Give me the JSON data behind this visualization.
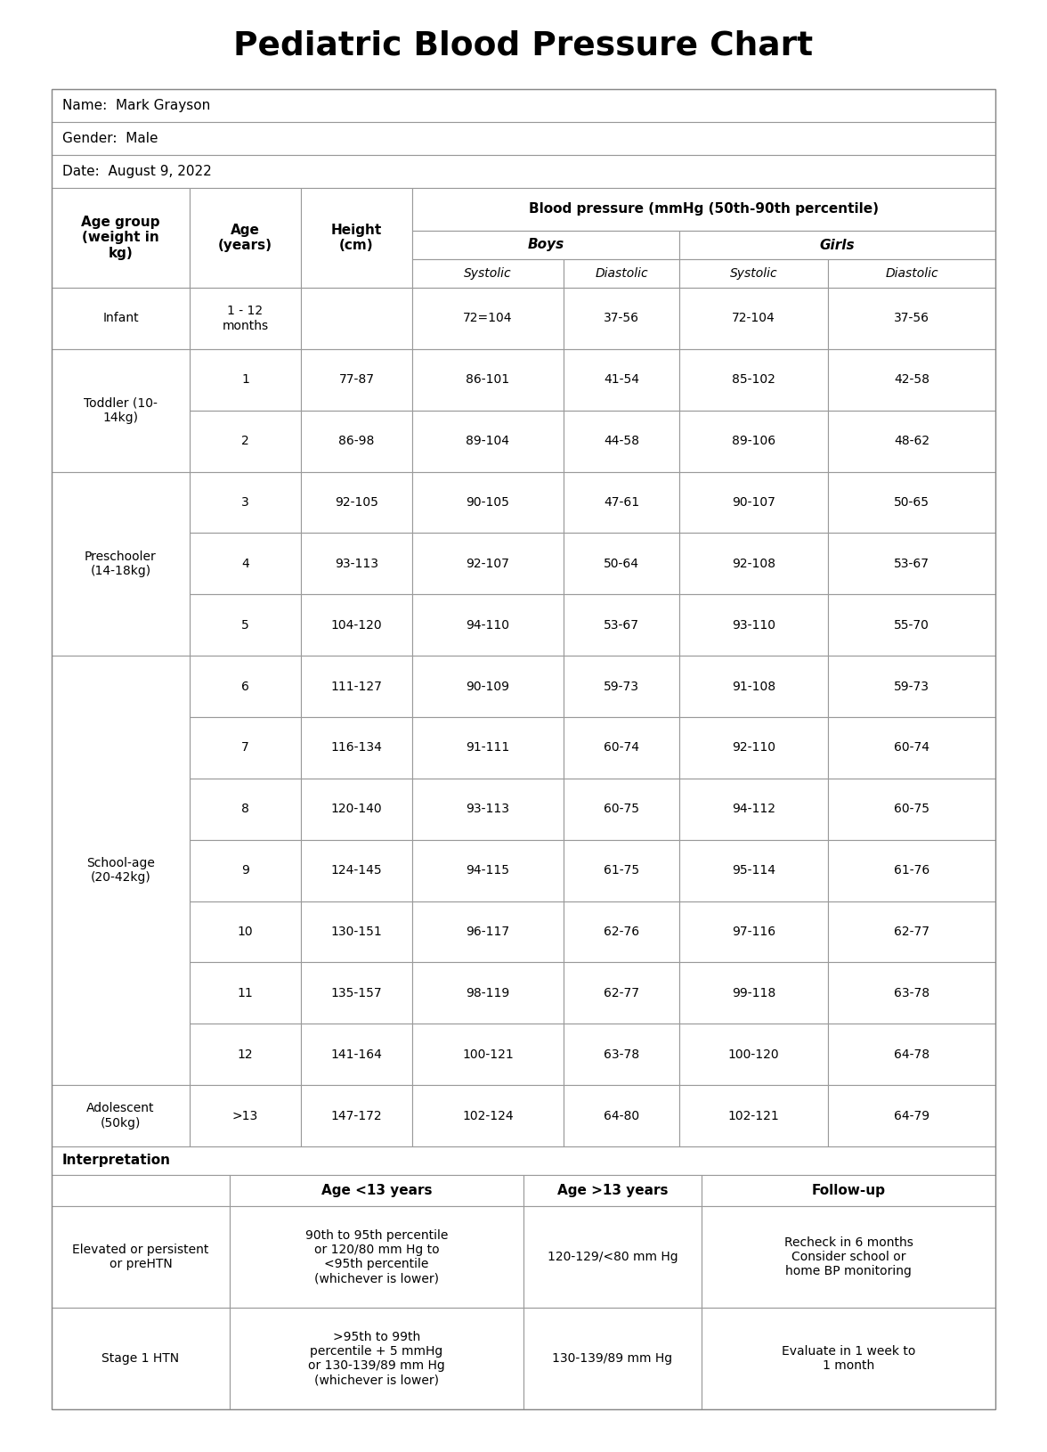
{
  "title": "Pediatric Blood Pressure Chart",
  "name": "Name:  Mark Grayson",
  "gender": "Gender:  Male",
  "date": "Date:  August 9, 2022",
  "bp_header": "Blood pressure (mmHg (50th-90th percentile)",
  "col_headers": [
    "Age group\n(weight in\nkg)",
    "Age\n(years)",
    "Height\n(cm)",
    "Systolic",
    "Diastolic",
    "Systolic",
    "Diastolic"
  ],
  "main_table_data": [
    {
      "group": "Infant",
      "age": "1 - 12\nmonths",
      "height": "",
      "b_sys": "72=104",
      "b_dia": "37-56",
      "g_sys": "72-104",
      "g_dia": "37-56"
    },
    {
      "group": "Toddler (10-\n14kg)",
      "age": "1",
      "height": "77-87",
      "b_sys": "86-101",
      "b_dia": "41-54",
      "g_sys": "85-102",
      "g_dia": "42-58"
    },
    {
      "group": "",
      "age": "2",
      "height": "86-98",
      "b_sys": "89-104",
      "b_dia": "44-58",
      "g_sys": "89-106",
      "g_dia": "48-62"
    },
    {
      "group": "Preschooler\n(14-18kg)",
      "age": "3",
      "height": "92-105",
      "b_sys": "90-105",
      "b_dia": "47-61",
      "g_sys": "90-107",
      "g_dia": "50-65"
    },
    {
      "group": "",
      "age": "4",
      "height": "93-113",
      "b_sys": "92-107",
      "b_dia": "50-64",
      "g_sys": "92-108",
      "g_dia": "53-67"
    },
    {
      "group": "",
      "age": "5",
      "height": "104-120",
      "b_sys": "94-110",
      "b_dia": "53-67",
      "g_sys": "93-110",
      "g_dia": "55-70"
    },
    {
      "group": "School-age\n(20-42kg)",
      "age": "6",
      "height": "111-127",
      "b_sys": "90-109",
      "b_dia": "59-73",
      "g_sys": "91-108",
      "g_dia": "59-73"
    },
    {
      "group": "",
      "age": "7",
      "height": "116-134",
      "b_sys": "91-111",
      "b_dia": "60-74",
      "g_sys": "92-110",
      "g_dia": "60-74"
    },
    {
      "group": "",
      "age": "8",
      "height": "120-140",
      "b_sys": "93-113",
      "b_dia": "60-75",
      "g_sys": "94-112",
      "g_dia": "60-75"
    },
    {
      "group": "",
      "age": "9",
      "height": "124-145",
      "b_sys": "94-115",
      "b_dia": "61-75",
      "g_sys": "95-114",
      "g_dia": "61-76"
    },
    {
      "group": "",
      "age": "10",
      "height": "130-151",
      "b_sys": "96-117",
      "b_dia": "62-76",
      "g_sys": "97-116",
      "g_dia": "62-77"
    },
    {
      "group": "",
      "age": "11",
      "height": "135-157",
      "b_sys": "98-119",
      "b_dia": "62-77",
      "g_sys": "99-118",
      "g_dia": "63-78"
    },
    {
      "group": "",
      "age": "12",
      "height": "141-164",
      "b_sys": "100-121",
      "b_dia": "63-78",
      "g_sys": "100-120",
      "g_dia": "64-78"
    },
    {
      "group": "Adolescent\n(50kg)",
      "age": ">13",
      "height": "147-172",
      "b_sys": "102-124",
      "b_dia": "64-80",
      "g_sys": "102-121",
      "g_dia": "64-79"
    }
  ],
  "group_spans": [
    {
      "label": "Infant",
      "start": 0,
      "end": 0
    },
    {
      "label": "Toddler (10-\n14kg)",
      "start": 1,
      "end": 2
    },
    {
      "label": "Preschooler\n(14-18kg)",
      "start": 3,
      "end": 5
    },
    {
      "label": "School-age\n(20-42kg)",
      "start": 6,
      "end": 12
    },
    {
      "label": "Adolescent\n(50kg)",
      "start": 13,
      "end": 13
    }
  ],
  "interpretation_header": "Interpretation",
  "interp_col_headers": [
    "",
    "Age <13 years",
    "Age >13 years",
    "Follow-up"
  ],
  "interp_data": [
    {
      "col1": "Elevated or persistent\nor preHTN",
      "col2": "90th to 95th percentile\nor 120/80 mm Hg to\n<95th percentile\n(whichever is lower)",
      "col3": "120-129/<80 mm Hg",
      "col4": "Recheck in 6 months\nConsider school or\nhome BP monitoring"
    },
    {
      "col1": "Stage 1 HTN",
      "col2": ">95th to 99th\npercentile + 5 mmHg\nor 130-139/89 mm Hg\n(whichever is lower)",
      "col3": "130-139/89 mm Hg",
      "col4": "Evaluate in 1 week to\n1 month"
    }
  ]
}
